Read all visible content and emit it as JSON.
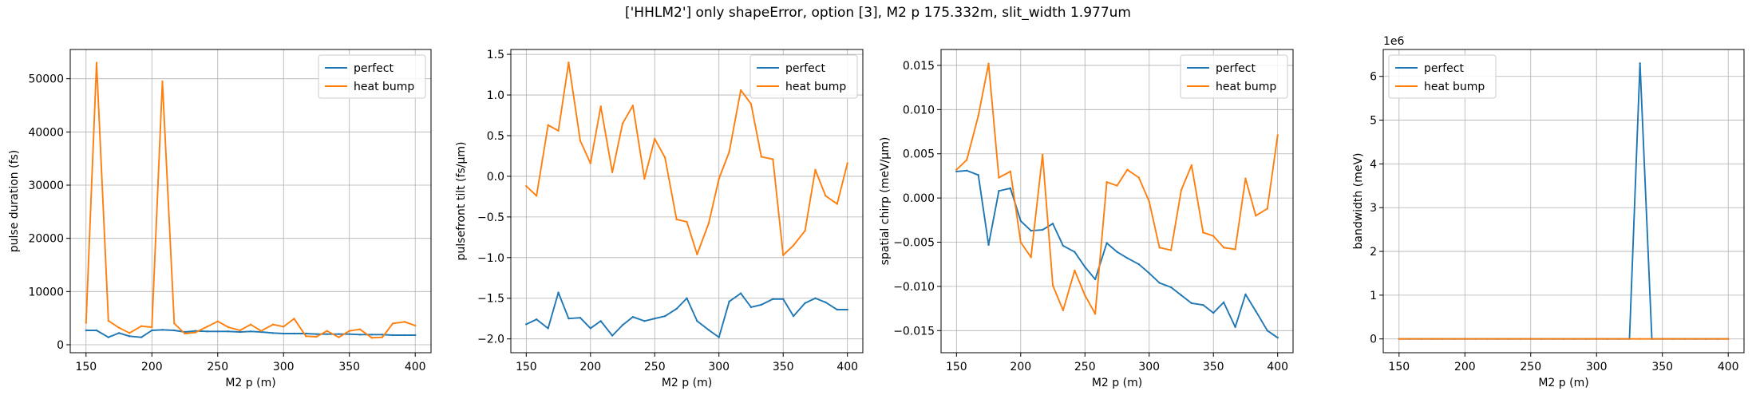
{
  "figure": {
    "title": "['HHLM2'] only shapeError, option [3], M2 p 175.332m, slit_width 1.977um"
  },
  "chart_data": [
    {
      "type": "line",
      "xlabel": "M2 p (m)",
      "ylabel": "pulse duration (fs)",
      "xlim": [
        138,
        412
      ],
      "ylim": [
        -1500,
        55500
      ],
      "xticks": [
        150,
        200,
        250,
        300,
        350,
        400
      ],
      "yticks": [
        0,
        10000,
        20000,
        30000,
        40000,
        50000
      ],
      "ytick_labels": [
        "0",
        "10000",
        "20000",
        "30000",
        "40000",
        "50000"
      ],
      "grid": true,
      "legend": "top-right",
      "x": [
        150,
        158,
        167,
        175,
        183,
        192,
        200,
        208,
        217,
        225,
        233,
        242,
        250,
        258,
        267,
        275,
        283,
        292,
        300,
        308,
        317,
        325,
        333,
        342,
        350,
        358,
        367,
        375,
        383,
        392,
        400
      ],
      "series": [
        {
          "name": "perfect",
          "color": "#1f77b4",
          "values": [
            2700,
            2700,
            1400,
            2200,
            1600,
            1400,
            2700,
            2800,
            2700,
            2400,
            2600,
            2500,
            2500,
            2500,
            2400,
            2500,
            2400,
            2200,
            2100,
            2100,
            2100,
            2000,
            2000,
            2000,
            2000,
            1900,
            1900,
            1900,
            1800,
            1800,
            1800
          ]
        },
        {
          "name": "heat bump",
          "color": "#ff7f0e",
          "values": [
            4100,
            53000,
            4500,
            3200,
            2200,
            3500,
            3300,
            49500,
            4000,
            2100,
            2300,
            3400,
            4400,
            3300,
            2700,
            3800,
            2600,
            3800,
            3400,
            4900,
            1600,
            1500,
            2600,
            1400,
            2600,
            2900,
            1300,
            1400,
            4000,
            4300,
            3600
          ]
        }
      ]
    },
    {
      "type": "line",
      "xlabel": "M2 p (m)",
      "ylabel": "pulsefront tilt (fs/μm)",
      "xlim": [
        138,
        412
      ],
      "ylim": [
        -2.17,
        1.56
      ],
      "xticks": [
        150,
        200,
        250,
        300,
        350,
        400
      ],
      "yticks": [
        -2.0,
        -1.5,
        -1.0,
        -0.5,
        0.0,
        0.5,
        1.0,
        1.5
      ],
      "ytick_labels": [
        "−2.0",
        "−1.5",
        "−1.0",
        "−0.5",
        "0.0",
        "0.5",
        "1.0",
        "1.5"
      ],
      "grid": true,
      "legend": "top-right",
      "x": [
        150,
        158,
        167,
        175,
        183,
        192,
        200,
        208,
        217,
        225,
        233,
        242,
        250,
        258,
        267,
        275,
        283,
        292,
        300,
        308,
        317,
        325,
        333,
        342,
        350,
        358,
        367,
        375,
        383,
        392,
        400
      ],
      "series": [
        {
          "name": "perfect",
          "color": "#1f77b4",
          "values": [
            -1.82,
            -1.76,
            -1.87,
            -1.43,
            -1.75,
            -1.74,
            -1.87,
            -1.78,
            -1.96,
            -1.83,
            -1.73,
            -1.78,
            -1.75,
            -1.72,
            -1.63,
            -1.5,
            -1.78,
            -1.89,
            -1.98,
            -1.54,
            -1.44,
            -1.61,
            -1.58,
            -1.51,
            -1.51,
            -1.72,
            -1.56,
            -1.5,
            -1.55,
            -1.64,
            -1.64
          ]
        },
        {
          "name": "heat bump",
          "color": "#ff7f0e",
          "values": [
            -0.12,
            -0.24,
            0.63,
            0.56,
            1.4,
            0.44,
            0.16,
            0.86,
            0.05,
            0.65,
            0.87,
            -0.03,
            0.46,
            0.23,
            -0.53,
            -0.56,
            -0.96,
            -0.58,
            -0.03,
            0.3,
            1.06,
            0.89,
            0.24,
            0.21,
            -0.97,
            -0.85,
            -0.67,
            0.08,
            -0.24,
            -0.34,
            0.16
          ]
        }
      ]
    },
    {
      "type": "line",
      "xlabel": "M2 p (m)",
      "ylabel": "spatial chirp (meV/μm)",
      "xlim": [
        138,
        412
      ],
      "ylim": [
        -0.0175,
        0.0168
      ],
      "xticks": [
        150,
        200,
        250,
        300,
        350,
        400
      ],
      "yticks": [
        -0.015,
        -0.01,
        -0.005,
        0.0,
        0.005,
        0.01,
        0.015
      ],
      "ytick_labels": [
        "−0.015",
        "−0.010",
        "−0.005",
        "0.000",
        "0.005",
        "0.010",
        "0.015"
      ],
      "grid": true,
      "legend": "top-right",
      "x": [
        150,
        158,
        167,
        175,
        183,
        192,
        200,
        208,
        217,
        225,
        233,
        242,
        250,
        258,
        267,
        275,
        283,
        292,
        300,
        308,
        317,
        325,
        333,
        342,
        350,
        358,
        367,
        375,
        383,
        392,
        400
      ],
      "series": [
        {
          "name": "perfect",
          "color": "#1f77b4",
          "values": [
            0.003,
            0.0031,
            0.0026,
            -0.0053,
            0.0008,
            0.0011,
            -0.0026,
            -0.0037,
            -0.0036,
            -0.0029,
            -0.0054,
            -0.0061,
            -0.0078,
            -0.0092,
            -0.0051,
            -0.0061,
            -0.0068,
            -0.0075,
            -0.0085,
            -0.0096,
            -0.0101,
            -0.011,
            -0.0119,
            -0.0121,
            -0.013,
            -0.0118,
            -0.0146,
            -0.0109,
            -0.0128,
            -0.015,
            -0.0158
          ]
        },
        {
          "name": "heat bump",
          "color": "#ff7f0e",
          "values": [
            0.0032,
            0.0043,
            0.0093,
            0.0152,
            0.0023,
            0.003,
            -0.005,
            -0.0067,
            0.0049,
            -0.0099,
            -0.0127,
            -0.0082,
            -0.011,
            -0.0131,
            0.0018,
            0.0014,
            0.0032,
            0.0023,
            -0.0004,
            -0.0056,
            -0.0059,
            0.0009,
            0.0037,
            -0.0039,
            -0.0043,
            -0.0056,
            -0.0058,
            0.0022,
            -0.002,
            -0.0012,
            0.0071
          ]
        }
      ]
    },
    {
      "type": "line",
      "xlabel": "M2 p (m)",
      "ylabel": "bandwidth (meV)",
      "offset_text": "1e6",
      "xlim": [
        138,
        412
      ],
      "ylim": [
        -315000,
        6615000
      ],
      "xticks": [
        150,
        200,
        250,
        300,
        350,
        400
      ],
      "yticks": [
        0,
        1000000,
        2000000,
        3000000,
        4000000,
        5000000,
        6000000
      ],
      "ytick_labels": [
        "0",
        "1",
        "2",
        "3",
        "4",
        "5",
        "6"
      ],
      "grid": true,
      "legend": "top-left",
      "x": [
        150,
        158,
        167,
        175,
        183,
        192,
        200,
        208,
        217,
        225,
        233,
        242,
        250,
        258,
        267,
        275,
        283,
        292,
        300,
        308,
        317,
        325,
        333,
        342,
        350,
        358,
        367,
        375,
        383,
        392,
        400
      ],
      "series": [
        {
          "name": "perfect",
          "color": "#1f77b4",
          "values": [
            0,
            0,
            0,
            0,
            0,
            0,
            0,
            0,
            0,
            0,
            0,
            0,
            0,
            0,
            0,
            0,
            0,
            0,
            0,
            0,
            0,
            0,
            6300000,
            0,
            0,
            0,
            0,
            0,
            0,
            0,
            0
          ]
        },
        {
          "name": "heat bump",
          "color": "#ff7f0e",
          "values": [
            0,
            0,
            0,
            0,
            0,
            0,
            0,
            0,
            0,
            0,
            0,
            0,
            0,
            0,
            0,
            0,
            0,
            0,
            0,
            0,
            0,
            0,
            0,
            0,
            0,
            0,
            0,
            0,
            0,
            0,
            0
          ]
        }
      ]
    }
  ]
}
